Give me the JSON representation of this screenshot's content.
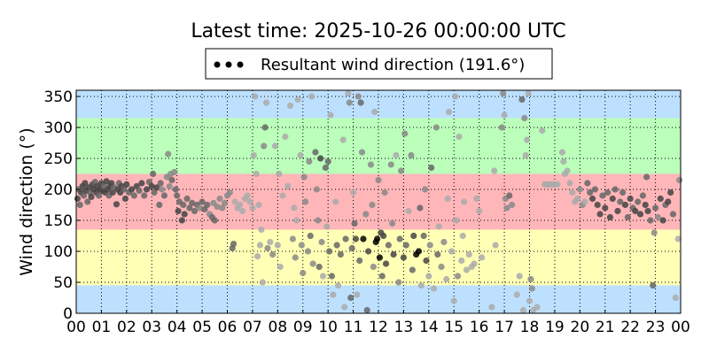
{
  "chart_data": {
    "type": "scatter",
    "title": "Latest time: 2025-10-26 00:00:00 UTC",
    "ylabel": "Wind direction (°)",
    "xlabel": "",
    "legend": {
      "label": "Resultant wind direction (191.6°)",
      "placement": "top-center",
      "marker_color": "#000000"
    },
    "xlim": [
      0,
      24
    ],
    "ylim": [
      0,
      360
    ],
    "grid": true,
    "x_tick_labels": [
      "00",
      "01",
      "02",
      "03",
      "04",
      "05",
      "06",
      "07",
      "08",
      "09",
      "10",
      "11",
      "12",
      "13",
      "14",
      "15",
      "16",
      "17",
      "18",
      "19",
      "20",
      "21",
      "22",
      "23",
      "00"
    ],
    "y_ticks": [
      0,
      50,
      100,
      150,
      200,
      250,
      300,
      350
    ],
    "bands": [
      {
        "from": 0,
        "to": 45,
        "color": "#bde0ff"
      },
      {
        "from": 45,
        "to": 135,
        "color": "#ffffb6"
      },
      {
        "from": 135,
        "to": 225,
        "color": "#ffb6b9"
      },
      {
        "from": 225,
        "to": 315,
        "color": "#bbffbb"
      },
      {
        "from": 315,
        "to": 360,
        "color": "#bde0ff"
      }
    ],
    "shade_palette": [
      "#000000",
      "#444444",
      "#666666",
      "#888888",
      "#aaaaaa"
    ],
    "points_format": "[hour, direction_deg, shade_index]",
    "points": [
      [
        0.05,
        185,
        1
      ],
      [
        0.1,
        200,
        2
      ],
      [
        0.15,
        175,
        2
      ],
      [
        0.2,
        195,
        1
      ],
      [
        0.25,
        205,
        1
      ],
      [
        0.3,
        190,
        2
      ],
      [
        0.35,
        210,
        1
      ],
      [
        0.4,
        198,
        1
      ],
      [
        0.45,
        180,
        2
      ],
      [
        0.5,
        203,
        1
      ],
      [
        0.55,
        195,
        2
      ],
      [
        0.6,
        188,
        1
      ],
      [
        0.65,
        208,
        1
      ],
      [
        0.7,
        200,
        1
      ],
      [
        0.75,
        212,
        2
      ],
      [
        0.8,
        195,
        1
      ],
      [
        0.85,
        205,
        1
      ],
      [
        0.9,
        190,
        2
      ],
      [
        0.95,
        200,
        1
      ],
      [
        1.0,
        210,
        1
      ],
      [
        1.05,
        198,
        1
      ],
      [
        1.1,
        205,
        2
      ],
      [
        1.15,
        195,
        1
      ],
      [
        1.2,
        213,
        1
      ],
      [
        1.25,
        200,
        1
      ],
      [
        1.3,
        190,
        2
      ],
      [
        1.35,
        205,
        1
      ],
      [
        1.4,
        210,
        1
      ],
      [
        1.45,
        195,
        1
      ],
      [
        1.5,
        203,
        2
      ],
      [
        1.6,
        176,
        1
      ],
      [
        1.65,
        200,
        1
      ],
      [
        1.7,
        210,
        2
      ],
      [
        1.75,
        195,
        1
      ],
      [
        1.8,
        205,
        1
      ],
      [
        1.9,
        200,
        2
      ],
      [
        1.95,
        185,
        1
      ],
      [
        2.0,
        208,
        1
      ],
      [
        2.1,
        195,
        2
      ],
      [
        2.2,
        200,
        1
      ],
      [
        2.3,
        190,
        2
      ],
      [
        2.4,
        205,
        1
      ],
      [
        2.5,
        198,
        2
      ],
      [
        2.6,
        210,
        1
      ],
      [
        2.7,
        190,
        2
      ],
      [
        2.8,
        200,
        1
      ],
      [
        2.9,
        212,
        2
      ],
      [
        3.0,
        205,
        1
      ],
      [
        3.05,
        225,
        2
      ],
      [
        3.1,
        195,
        2
      ],
      [
        3.2,
        203,
        1
      ],
      [
        3.3,
        175,
        2
      ],
      [
        3.35,
        210,
        2
      ],
      [
        3.4,
        200,
        3
      ],
      [
        3.5,
        190,
        2
      ],
      [
        3.6,
        220,
        3
      ],
      [
        3.65,
        257,
        3
      ],
      [
        3.7,
        205,
        3
      ],
      [
        3.75,
        225,
        3
      ],
      [
        3.8,
        215,
        2
      ],
      [
        3.9,
        228,
        3
      ],
      [
        3.95,
        200,
        2
      ],
      [
        4.0,
        190,
        2
      ],
      [
        4.05,
        165,
        1
      ],
      [
        4.1,
        180,
        2
      ],
      [
        4.2,
        150,
        1
      ],
      [
        4.25,
        175,
        2
      ],
      [
        4.3,
        160,
        1
      ],
      [
        4.4,
        185,
        2
      ],
      [
        4.5,
        170,
        2
      ],
      [
        4.6,
        178,
        2
      ],
      [
        4.7,
        165,
        2
      ],
      [
        4.8,
        175,
        2
      ],
      [
        4.9,
        170,
        3
      ],
      [
        5.0,
        180,
        2
      ],
      [
        5.1,
        168,
        2
      ],
      [
        5.2,
        175,
        2
      ],
      [
        5.3,
        160,
        3
      ],
      [
        5.4,
        155,
        2
      ],
      [
        5.45,
        178,
        3
      ],
      [
        5.5,
        150,
        2
      ],
      [
        5.6,
        172,
        3
      ],
      [
        5.7,
        185,
        3
      ],
      [
        5.8,
        170,
        3
      ],
      [
        5.9,
        178,
        3
      ],
      [
        6.0,
        190,
        3
      ],
      [
        6.1,
        195,
        3
      ],
      [
        6.2,
        105,
        2
      ],
      [
        6.25,
        112,
        2
      ],
      [
        6.3,
        180,
        4
      ],
      [
        6.4,
        170,
        4
      ],
      [
        6.5,
        175,
        4
      ],
      [
        6.6,
        165,
        4
      ],
      [
        6.7,
        185,
        4
      ],
      [
        6.8,
        190,
        4
      ],
      [
        6.9,
        180,
        4
      ],
      [
        7.0,
        170,
        4
      ],
      [
        7.05,
        255,
        4
      ],
      [
        7.1,
        350,
        4
      ],
      [
        7.15,
        225,
        4
      ],
      [
        7.2,
        92,
        4
      ],
      [
        7.25,
        175,
        4
      ],
      [
        7.3,
        110,
        4
      ],
      [
        7.35,
        135,
        4
      ],
      [
        7.4,
        50,
        4
      ],
      [
        7.45,
        270,
        3
      ],
      [
        7.5,
        300,
        2
      ],
      [
        7.55,
        340,
        4
      ],
      [
        7.6,
        105,
        3
      ],
      [
        7.7,
        115,
        4
      ],
      [
        7.8,
        95,
        3
      ],
      [
        7.9,
        270,
        4
      ],
      [
        8.0,
        110,
        4
      ],
      [
        8.05,
        225,
        4
      ],
      [
        8.1,
        75,
        4
      ],
      [
        8.2,
        190,
        4
      ],
      [
        8.3,
        285,
        4
      ],
      [
        8.4,
        205,
        4
      ],
      [
        8.5,
        335,
        4
      ],
      [
        8.6,
        120,
        3
      ],
      [
        8.65,
        170,
        4
      ],
      [
        8.7,
        90,
        3
      ],
      [
        8.75,
        150,
        4
      ],
      [
        8.8,
        345,
        4
      ],
      [
        8.9,
        255,
        4
      ],
      [
        8.95,
        110,
        3
      ],
      [
        9.0,
        65,
        3
      ],
      [
        9.05,
        220,
        3
      ],
      [
        9.1,
        180,
        3
      ],
      [
        9.2,
        100,
        3
      ],
      [
        9.25,
        245,
        3
      ],
      [
        9.3,
        125,
        2
      ],
      [
        9.35,
        350,
        4
      ],
      [
        9.4,
        80,
        3
      ],
      [
        9.5,
        260,
        2
      ],
      [
        9.55,
        200,
        3
      ],
      [
        9.6,
        150,
        3
      ],
      [
        9.65,
        75,
        2
      ],
      [
        9.7,
        250,
        1
      ],
      [
        9.75,
        115,
        3
      ],
      [
        9.8,
        60,
        4
      ],
      [
        9.9,
        235,
        2
      ],
      [
        9.95,
        140,
        4
      ],
      [
        10.0,
        245,
        2
      ],
      [
        10.05,
        100,
        2
      ],
      [
        10.1,
        320,
        4
      ],
      [
        10.15,
        60,
        2
      ],
      [
        10.2,
        30,
        4
      ],
      [
        10.3,
        180,
        4
      ],
      [
        10.35,
        110,
        2
      ],
      [
        10.4,
        45,
        4
      ],
      [
        10.5,
        95,
        2
      ],
      [
        10.6,
        280,
        4
      ],
      [
        10.65,
        10,
        4
      ],
      [
        10.7,
        120,
        2
      ],
      [
        10.8,
        355,
        4
      ],
      [
        10.85,
        340,
        3
      ],
      [
        10.9,
        25,
        2
      ],
      [
        10.95,
        105,
        2
      ],
      [
        11.0,
        195,
        4
      ],
      [
        11.05,
        145,
        2
      ],
      [
        11.1,
        120,
        1
      ],
      [
        11.15,
        30,
        4
      ],
      [
        11.2,
        350,
        3
      ],
      [
        11.25,
        85,
        2
      ],
      [
        11.3,
        340,
        2
      ],
      [
        11.35,
        260,
        3
      ],
      [
        11.4,
        120,
        0
      ],
      [
        11.5,
        160,
        3
      ],
      [
        11.55,
        5,
        2
      ],
      [
        11.6,
        100,
        1
      ],
      [
        11.7,
        240,
        3
      ],
      [
        11.75,
        175,
        3
      ],
      [
        11.8,
        75,
        3
      ],
      [
        11.85,
        325,
        4
      ],
      [
        11.9,
        115,
        0
      ],
      [
        11.95,
        120,
        0
      ],
      [
        12.0,
        215,
        3
      ],
      [
        12.05,
        90,
        0
      ],
      [
        12.1,
        130,
        1
      ],
      [
        12.15,
        60,
        2
      ],
      [
        12.2,
        125,
        1
      ],
      [
        12.25,
        195,
        3
      ],
      [
        12.3,
        80,
        1
      ],
      [
        12.4,
        110,
        2
      ],
      [
        12.5,
        240,
        3
      ],
      [
        12.55,
        145,
        3
      ],
      [
        12.6,
        95,
        1
      ],
      [
        12.7,
        255,
        4
      ],
      [
        12.8,
        50,
        3
      ],
      [
        12.85,
        120,
        2
      ],
      [
        12.9,
        230,
        3
      ],
      [
        13.0,
        90,
        1
      ],
      [
        13.05,
        290,
        3
      ],
      [
        13.1,
        110,
        2
      ],
      [
        13.2,
        165,
        4
      ],
      [
        13.3,
        255,
        3
      ],
      [
        13.35,
        70,
        2
      ],
      [
        13.4,
        125,
        1
      ],
      [
        13.5,
        95,
        0
      ],
      [
        13.6,
        100,
        0
      ],
      [
        13.65,
        170,
        2
      ],
      [
        13.7,
        45,
        4
      ],
      [
        13.8,
        125,
        2
      ],
      [
        13.85,
        200,
        3
      ],
      [
        13.9,
        85,
        1
      ],
      [
        14.0,
        60,
        4
      ],
      [
        14.05,
        110,
        3
      ],
      [
        14.1,
        235,
        2
      ],
      [
        14.2,
        40,
        4
      ],
      [
        14.3,
        300,
        3
      ],
      [
        14.35,
        95,
        2
      ],
      [
        14.4,
        140,
        4
      ],
      [
        14.5,
        75,
        3
      ],
      [
        14.6,
        115,
        3
      ],
      [
        14.7,
        55,
        4
      ],
      [
        14.75,
        185,
        4
      ],
      [
        14.8,
        325,
        4
      ],
      [
        14.9,
        100,
        4
      ],
      [
        15.0,
        20,
        4
      ],
      [
        15.05,
        350,
        4
      ],
      [
        15.1,
        150,
        4
      ],
      [
        15.15,
        60,
        3
      ],
      [
        15.2,
        285,
        4
      ],
      [
        15.3,
        85,
        4
      ],
      [
        15.35,
        125,
        4
      ],
      [
        15.4,
        180,
        4
      ],
      [
        15.5,
        70,
        4
      ],
      [
        15.6,
        95,
        4
      ],
      [
        15.7,
        75,
        4
      ],
      [
        15.8,
        80,
        4
      ],
      [
        15.9,
        185,
        4
      ],
      [
        16.0,
        165,
        4
      ],
      [
        16.1,
        90,
        4
      ],
      [
        16.5,
        10,
        4
      ],
      [
        16.6,
        230,
        4
      ],
      [
        16.65,
        110,
        4
      ],
      [
        16.9,
        300,
        3
      ],
      [
        16.95,
        355,
        3
      ],
      [
        17.0,
        320,
        4
      ],
      [
        17.05,
        185,
        3
      ],
      [
        17.1,
        170,
        3
      ],
      [
        17.2,
        190,
        2
      ],
      [
        17.3,
        175,
        3
      ],
      [
        17.5,
        30,
        4
      ],
      [
        17.6,
        60,
        4
      ],
      [
        17.7,
        345,
        2
      ],
      [
        17.75,
        5,
        4
      ],
      [
        17.8,
        315,
        3
      ],
      [
        17.85,
        255,
        4
      ],
      [
        17.9,
        280,
        4
      ],
      [
        17.95,
        355,
        4
      ],
      [
        18.0,
        20,
        4
      ],
      [
        18.05,
        55,
        3
      ],
      [
        18.1,
        40,
        3
      ],
      [
        18.15,
        5,
        4
      ],
      [
        18.3,
        10,
        4
      ],
      [
        18.5,
        295,
        4
      ],
      [
        18.6,
        208,
        4
      ],
      [
        18.7,
        208,
        4
      ],
      [
        18.8,
        208,
        4
      ],
      [
        18.9,
        208,
        4
      ],
      [
        19.0,
        208,
        4
      ],
      [
        19.1,
        208,
        4
      ],
      [
        19.3,
        260,
        4
      ],
      [
        19.35,
        245,
        4
      ],
      [
        19.4,
        225,
        4
      ],
      [
        19.5,
        230,
        4
      ],
      [
        19.6,
        210,
        4
      ],
      [
        19.7,
        195,
        4
      ],
      [
        19.8,
        180,
        4
      ],
      [
        19.9,
        185,
        4
      ],
      [
        20.0,
        200,
        3
      ],
      [
        20.1,
        175,
        3
      ],
      [
        20.2,
        180,
        4
      ],
      [
        20.3,
        210,
        2
      ],
      [
        20.4,
        195,
        2
      ],
      [
        20.5,
        185,
        1
      ],
      [
        20.6,
        200,
        2
      ],
      [
        20.7,
        175,
        1
      ],
      [
        20.8,
        160,
        1
      ],
      [
        20.9,
        190,
        2
      ],
      [
        21.0,
        170,
        1
      ],
      [
        21.1,
        195,
        2
      ],
      [
        21.2,
        155,
        1
      ],
      [
        21.3,
        185,
        1
      ],
      [
        21.4,
        200,
        2
      ],
      [
        21.5,
        165,
        1
      ],
      [
        21.6,
        180,
        2
      ],
      [
        21.7,
        195,
        2
      ],
      [
        21.8,
        175,
        1
      ],
      [
        21.9,
        155,
        2
      ],
      [
        22.0,
        185,
        1
      ],
      [
        22.1,
        170,
        2
      ],
      [
        22.2,
        165,
        1
      ],
      [
        22.3,
        180,
        2
      ],
      [
        22.4,
        160,
        1
      ],
      [
        22.5,
        190,
        2
      ],
      [
        22.6,
        175,
        1
      ],
      [
        22.65,
        220,
        2
      ],
      [
        22.7,
        165,
        1
      ],
      [
        22.8,
        150,
        2
      ],
      [
        22.9,
        45,
        2
      ],
      [
        22.95,
        130,
        3
      ],
      [
        23.0,
        170,
        2
      ],
      [
        23.1,
        155,
        3
      ],
      [
        23.2,
        185,
        1
      ],
      [
        23.3,
        150,
        1
      ],
      [
        23.4,
        175,
        2
      ],
      [
        23.5,
        180,
        1
      ],
      [
        23.6,
        195,
        1
      ],
      [
        23.7,
        160,
        2
      ],
      [
        23.8,
        25,
        4
      ],
      [
        23.9,
        120,
        4
      ],
      [
        23.95,
        215,
        3
      ]
    ]
  }
}
